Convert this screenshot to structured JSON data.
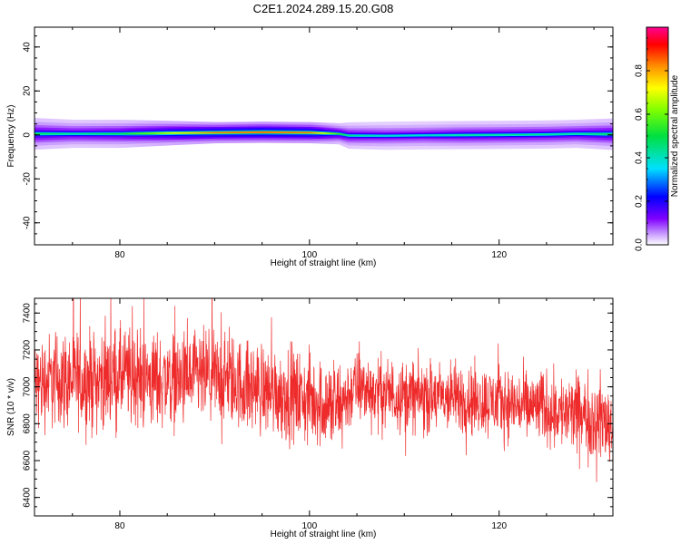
{
  "title": "C2E1.2024.289.15.20.G08",
  "chart_data": [
    {
      "type": "heatmap",
      "xlabel": "Height of straight line (km)",
      "ylabel": "Frequency (Hz)",
      "xlim": [
        71,
        132
      ],
      "ylim": [
        -50,
        49
      ],
      "xticks": [
        80,
        100,
        120
      ],
      "xtick_labels": [
        "80",
        "100",
        "120"
      ],
      "yticks": [
        -40,
        -20,
        0,
        20,
        40
      ],
      "ytick_labels": [
        "-40",
        "-20",
        "0",
        "20",
        "40"
      ],
      "grid": false,
      "ridge": {
        "x": [
          71,
          75,
          80,
          85,
          90,
          95,
          100,
          103,
          104,
          108,
          112,
          116,
          120,
          125,
          128,
          132
        ],
        "center_hz": [
          0.5,
          0.5,
          0.5,
          0.8,
          1.0,
          1.2,
          1.0,
          0.5,
          -0.3,
          -0.4,
          -0.2,
          -0.1,
          0.0,
          0.2,
          0.5,
          0.3
        ],
        "halfwidth_hz": [
          1.8,
          1.6,
          1.6,
          1.4,
          1.2,
          1.2,
          1.2,
          1.2,
          1.5,
          1.6,
          1.6,
          1.6,
          1.6,
          1.6,
          1.6,
          1.8
        ],
        "peak_amplitude": [
          0.5,
          0.45,
          0.5,
          0.7,
          0.85,
          0.9,
          0.85,
          0.55,
          0.45,
          0.4,
          0.4,
          0.45,
          0.45,
          0.45,
          0.45,
          0.5
        ]
      },
      "colorbar": {
        "label": "Normalized spectral amplitude",
        "range": [
          0.0,
          1.0
        ],
        "ticks": [
          0.0,
          0.2,
          0.4,
          0.6,
          0.8
        ],
        "tick_labels": [
          "0.0",
          "0.2",
          "0.4",
          "0.6",
          "0.8"
        ],
        "colormap": "rainbow (white, violet, blue, cyan, green, yellow, orange, red, magenta)"
      }
    },
    {
      "type": "line",
      "xlabel": "Height of straight line (km)",
      "ylabel": "SNR (10 * v/v)",
      "xlim": [
        71,
        132
      ],
      "ylim": [
        6300,
        7480
      ],
      "xticks": [
        80,
        100,
        120
      ],
      "xtick_labels": [
        "80",
        "100",
        "120"
      ],
      "yticks": [
        6400,
        6600,
        6800,
        7000,
        7200,
        7400
      ],
      "ytick_labels": [
        "6400",
        "6600",
        "6800",
        "7000",
        "7200",
        "7400"
      ],
      "grid": false,
      "color": "#ee2a2a",
      "series": [
        {
          "x": [
            71,
            73,
            75,
            77,
            79,
            81,
            83,
            85,
            87,
            89,
            91,
            93,
            95,
            97,
            99,
            101,
            103,
            104,
            105,
            107,
            109,
            111,
            113,
            115,
            117,
            119,
            121,
            123,
            125,
            127,
            129,
            131,
            132
          ],
          "mean": [
            7010,
            7040,
            7040,
            7030,
            7050,
            7060,
            7040,
            7040,
            7030,
            7050,
            7040,
            7010,
            6990,
            6970,
            6940,
            6920,
            6880,
            6950,
            7000,
            6970,
            6960,
            6950,
            6940,
            6940,
            6930,
            6920,
            6910,
            6890,
            6890,
            6860,
            6840,
            6820,
            6780
          ],
          "spread": [
            120,
            130,
            130,
            130,
            130,
            130,
            130,
            125,
            125,
            125,
            125,
            120,
            120,
            120,
            120,
            120,
            130,
            100,
            95,
            95,
            95,
            95,
            95,
            95,
            95,
            95,
            95,
            95,
            100,
            100,
            110,
            110,
            120
          ]
        }
      ]
    }
  ]
}
